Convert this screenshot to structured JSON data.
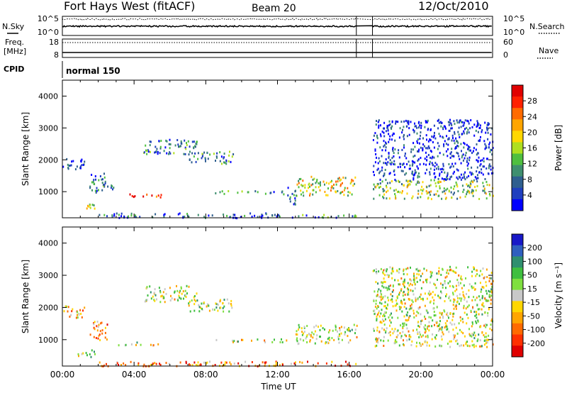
{
  "header": {
    "title": "Fort Hays West (fitACF)",
    "beam": "Beam 20",
    "date": "12/Oct/2010"
  },
  "strip": {
    "nsky_label": "N.Sky",
    "nsearch_label": "N.Search",
    "freq_label_1": "Freq.",
    "freq_label_2": "[MHz]",
    "nave_label": "Nave",
    "cpid_label": "CPID",
    "cpid_value": "normal 150",
    "nsky_ticks": [
      "10^5",
      "10^0"
    ],
    "nsearch_ticks": [
      "10^5",
      "10^0"
    ],
    "freq_ticks": [
      "18",
      "8"
    ],
    "nave_ticks": [
      "60",
      "0"
    ]
  },
  "chart_data": [
    {
      "type": "heatmap",
      "name": "power-panel",
      "ylabel": "Slant Range [km]",
      "xlabel": "",
      "x_ticks": [
        "00:00",
        "04:00",
        "08:00",
        "12:00",
        "16:00",
        "20:00",
        "00:00"
      ],
      "y_ticks": [
        "1000",
        "2000",
        "3000",
        "4000"
      ],
      "ylim": [
        180,
        4500
      ],
      "xlim_hours": [
        0,
        24
      ],
      "colorbar": {
        "label": "Power [dB]",
        "ticks": [
          "4",
          "8",
          "12",
          "16",
          "20",
          "24",
          "28"
        ],
        "colors": [
          "#0000ff",
          "#1f3fbf",
          "#2f5f8f",
          "#3f8f6f",
          "#4fbf3f",
          "#afdf1f",
          "#ffd700",
          "#ffa500",
          "#ff6a00",
          "#ff2000",
          "#e00000"
        ]
      },
      "echo_regions": [
        {
          "t0": 0.0,
          "t1": 1.2,
          "r0": 1700,
          "r1": 2100,
          "level": 0.15
        },
        {
          "t0": 1.0,
          "t1": 1.8,
          "r0": 450,
          "r1": 700,
          "level": 0.55
        },
        {
          "t0": 1.5,
          "t1": 2.5,
          "r0": 1000,
          "r1": 1600,
          "level": 0.2
        },
        {
          "t0": 2.0,
          "t1": 3.0,
          "r0": 1100,
          "r1": 1300,
          "level": 0.3
        },
        {
          "t0": 3.0,
          "t1": 5.5,
          "r0": 850,
          "r1": 950,
          "level": 0.9
        },
        {
          "t0": 4.5,
          "t1": 7.5,
          "r0": 2200,
          "r1": 2700,
          "level": 0.25
        },
        {
          "t0": 7.0,
          "t1": 9.5,
          "r0": 1900,
          "r1": 2300,
          "level": 0.3
        },
        {
          "t0": 8.5,
          "t1": 10.0,
          "r0": 950,
          "r1": 1050,
          "level": 0.3
        },
        {
          "t0": 10.0,
          "t1": 12.5,
          "r0": 950,
          "r1": 1050,
          "level": 0.2
        },
        {
          "t0": 12.5,
          "t1": 13.0,
          "r0": 600,
          "r1": 1200,
          "level": 0.2
        },
        {
          "t0": 13.0,
          "t1": 16.4,
          "r0": 900,
          "r1": 1500,
          "level": 0.55
        },
        {
          "t0": 17.3,
          "t1": 24.0,
          "r0": 800,
          "r1": 1400,
          "level": 0.45
        },
        {
          "t0": 17.3,
          "t1": 24.0,
          "r0": 1400,
          "r1": 3300,
          "level": 0.1
        },
        {
          "t0": 2.0,
          "t1": 12.5,
          "r0": 200,
          "r1": 350,
          "level": 0.15
        },
        {
          "t0": 12.5,
          "t1": 16.4,
          "r0": 200,
          "r1": 300,
          "level": 0.3
        }
      ]
    },
    {
      "type": "heatmap",
      "name": "velocity-panel",
      "ylabel": "Slant Range [km]",
      "xlabel": "Time UT",
      "x_ticks": [
        "00:00",
        "04:00",
        "08:00",
        "12:00",
        "16:00",
        "20:00",
        "00:00"
      ],
      "y_ticks": [
        "1000",
        "2000",
        "3000",
        "4000"
      ],
      "ylim": [
        180,
        4500
      ],
      "xlim_hours": [
        0,
        24
      ],
      "colorbar": {
        "label": "Velocity [m s⁻¹]",
        "ticks": [
          "200",
          "100",
          "50",
          "15",
          "-15",
          "-50",
          "-100",
          "-200"
        ],
        "colors": [
          "#1818c8",
          "#2f5fbf",
          "#2f8f6f",
          "#3fbf3f",
          "#7fdf3f",
          "#c8c8c8",
          "#ffd700",
          "#ffa500",
          "#ff6a00",
          "#ff3000",
          "#e00000"
        ]
      },
      "echo_regions": [
        {
          "t0": 0.0,
          "t1": 1.2,
          "r0": 1700,
          "r1": 2100,
          "level": 0.6
        },
        {
          "t0": 0.8,
          "t1": 1.8,
          "r0": 450,
          "r1": 700,
          "level": 0.45
        },
        {
          "t0": 1.5,
          "t1": 2.5,
          "r0": 1000,
          "r1": 1600,
          "level": 0.7
        },
        {
          "t0": 3.0,
          "t1": 5.5,
          "r0": 850,
          "r1": 950,
          "level": 0.5
        },
        {
          "t0": 4.5,
          "t1": 7.5,
          "r0": 2200,
          "r1": 2700,
          "level": 0.5
        },
        {
          "t0": 7.0,
          "t1": 9.5,
          "r0": 1900,
          "r1": 2300,
          "level": 0.45
        },
        {
          "t0": 8.5,
          "t1": 12.5,
          "r0": 950,
          "r1": 1050,
          "level": 0.5
        },
        {
          "t0": 13.0,
          "t1": 16.4,
          "r0": 900,
          "r1": 1500,
          "level": 0.5
        },
        {
          "t0": 17.3,
          "t1": 24.0,
          "r0": 800,
          "r1": 1400,
          "level": 0.5
        },
        {
          "t0": 17.3,
          "t1": 24.0,
          "r0": 1400,
          "r1": 3300,
          "level": 0.5
        },
        {
          "t0": 2.0,
          "t1": 16.4,
          "r0": 200,
          "r1": 350,
          "level": 0.75
        }
      ]
    }
  ]
}
